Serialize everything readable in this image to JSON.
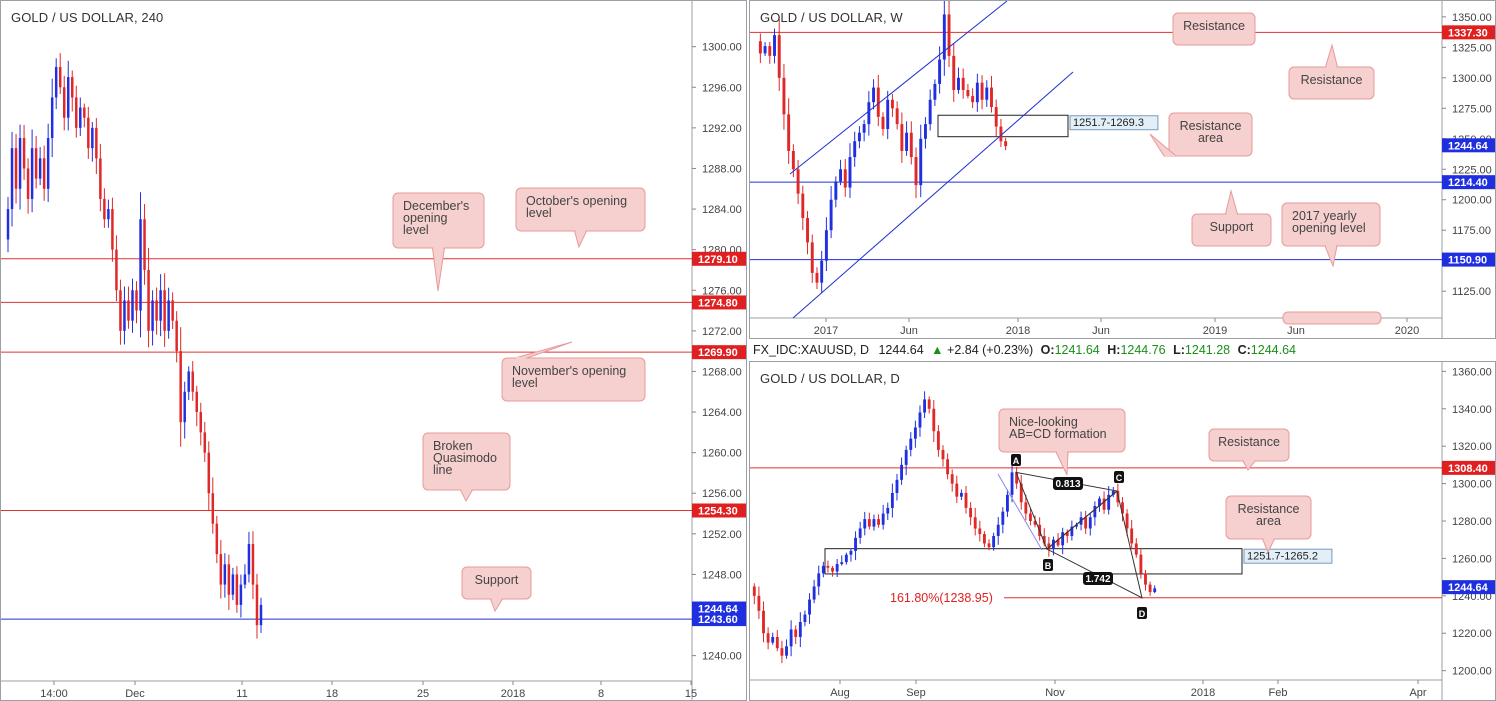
{
  "colors": {
    "up": "#2030e0",
    "down": "#e02828",
    "hline": "#e03030",
    "blueline": "#2030d0",
    "callout_bg": "#f6cfcf",
    "callout_border": "#e89a9a",
    "price_red": "#e02020",
    "price_blue": "#1f2fe0"
  },
  "symbol_bar": {
    "symbol": "FX_IDC:XAUUSD, D",
    "last": "1244.64",
    "change_icon": "triangle-up-icon",
    "change": "+2.84 (+0.23%)",
    "o_label": "O:",
    "o": "1241.64",
    "h_label": "H:",
    "h": "1244.76",
    "l_label": "L:",
    "l": "1241.28",
    "c_label": "C:",
    "c": "1244.64"
  },
  "chart_data": [
    {
      "id": "h4",
      "type": "candlestick",
      "title": "GOLD / US DOLLAR, 240",
      "ylim": [
        1237.5,
        1304.5
      ],
      "y_ticks": [
        "1240.00",
        "1244.00",
        "1248.00",
        "1252.00",
        "1256.00",
        "1260.00",
        "1264.00",
        "1268.00",
        "1272.00",
        "1276.00",
        "1280.00",
        "1284.00",
        "1288.00",
        "1292.00",
        "1296.00",
        "1300.00"
      ],
      "x_ticks": [
        "14:00",
        "Dec",
        "11",
        "18",
        "25",
        "2018",
        "8",
        "15"
      ],
      "levels": [
        {
          "price": 1279.1,
          "label": "1279.10",
          "color": "red"
        },
        {
          "price": 1274.8,
          "label": "1274.80",
          "color": "red"
        },
        {
          "price": 1269.9,
          "label": "1269.90",
          "color": "red"
        },
        {
          "price": 1254.3,
          "label": "1254.30",
          "color": "red"
        },
        {
          "price": 1243.6,
          "label": "1243.60",
          "color": "blue"
        }
      ],
      "last_price": {
        "price": 1244.64,
        "label": "1244.64"
      },
      "callouts": [
        {
          "text": [
            "December's",
            "opening",
            "level"
          ]
        },
        {
          "text": [
            "October's opening",
            "level"
          ]
        },
        {
          "text": [
            "November's opening",
            "level"
          ]
        },
        {
          "text": [
            "Broken",
            "Quasimodo",
            "line"
          ]
        },
        {
          "text": [
            "Support"
          ]
        }
      ],
      "path": [
        1281,
        1284,
        1290,
        1286,
        1291,
        1288,
        1285,
        1290,
        1287,
        1289,
        1286,
        1291,
        1295,
        1298,
        1296,
        1293,
        1297,
        1295,
        1292,
        1294,
        1293,
        1290,
        1292,
        1289,
        1285,
        1283,
        1284,
        1280,
        1276,
        1272,
        1275,
        1273,
        1276,
        1274,
        1283,
        1278,
        1272,
        1275,
        1273,
        1276,
        1272,
        1275,
        1273,
        1270,
        1263,
        1266,
        1268,
        1266,
        1264,
        1262,
        1260,
        1256,
        1253,
        1250,
        1247,
        1249,
        1246,
        1248,
        1245,
        1247,
        1248,
        1251,
        1247,
        1243,
        1245
      ],
      "path_x": [
        0,
        59
      ]
    },
    {
      "id": "weekly",
      "type": "candlestick",
      "title": "GOLD / US DOLLAR, W",
      "ylim": [
        1103,
        1363
      ],
      "y_ticks": [
        "1125.00",
        "1150.00",
        "1175.00",
        "1200.00",
        "1225.00",
        "1250.00",
        "1275.00",
        "1300.00",
        "1325.00",
        "1350.00"
      ],
      "x_ticks": [
        "2017",
        "Jun",
        "2018",
        "Jun",
        "2019",
        "Jun",
        "2020"
      ],
      "levels": [
        {
          "price": 1337.3,
          "label": "1337.30",
          "color": "red"
        },
        {
          "price": 1214.4,
          "label": "1214.40",
          "color": "blue"
        },
        {
          "price": 1150.9,
          "label": "1150.90",
          "color": "blue"
        }
      ],
      "last_price": {
        "price": 1244.64,
        "label": "1244.64"
      },
      "zone": {
        "top": 1269.3,
        "bottom": 1251.7,
        "label": "1251.7-1269.3"
      },
      "callouts": [
        {
          "text": [
            "Resistance"
          ]
        },
        {
          "text": [
            "Resistance"
          ]
        },
        {
          "text": [
            "Resistance",
            "area"
          ]
        },
        {
          "text": [
            "Support"
          ]
        },
        {
          "text": [
            "2017 yearly",
            "opening level"
          ]
        }
      ],
      "path": [
        1330,
        1320,
        1326,
        1318,
        1335,
        1300,
        1270,
        1240,
        1225,
        1205,
        1185,
        1165,
        1140,
        1132,
        1150,
        1175,
        1200,
        1215,
        1225,
        1210,
        1235,
        1248,
        1255,
        1262,
        1280,
        1292,
        1268,
        1258,
        1282,
        1275,
        1262,
        1240,
        1255,
        1235,
        1212,
        1250,
        1262,
        1282,
        1295,
        1315,
        1352,
        1318,
        1290,
        1300,
        1290,
        1285,
        1280,
        1296,
        1282,
        1292,
        1276,
        1260,
        1248,
        1244
      ],
      "path_x": [
        0,
        52
      ]
    },
    {
      "id": "daily",
      "type": "candlestick",
      "title": "GOLD / US DOLLAR, D",
      "ylim": [
        1195,
        1365
      ],
      "y_ticks": [
        "1200.00",
        "1220.00",
        "1240.00",
        "1260.00",
        "1280.00",
        "1300.00",
        "1320.00",
        "1340.00",
        "1360.00"
      ],
      "x_ticks": [
        "Aug",
        "Sep",
        "Nov",
        "2018",
        "Feb",
        "Apr"
      ],
      "levels": [
        {
          "price": 1308.4,
          "label": "1308.40",
          "color": "red"
        },
        {
          "price": 1238.95,
          "label": "161.80%(1238.95)",
          "color": "red"
        }
      ],
      "last_price": {
        "price": 1244.64,
        "label": "1244.64"
      },
      "zone": {
        "top": 1265.2,
        "bottom": 1251.7,
        "label": "1251.7-1265.2"
      },
      "pattern": {
        "points": [
          {
            "name": "A",
            "price": 1306
          },
          {
            "name": "B",
            "price": 1265
          },
          {
            "name": "C",
            "price": 1296
          },
          {
            "name": "D",
            "price": 1238.95
          }
        ],
        "ratios": [
          "0.813",
          "1.742"
        ]
      },
      "callouts": [
        {
          "text": [
            "Nice-looking",
            "AB=CD formation"
          ]
        },
        {
          "text": [
            "Resistance"
          ]
        },
        {
          "text": [
            "Resistance",
            "area"
          ]
        }
      ],
      "path": [
        1245,
        1240,
        1232,
        1220,
        1215,
        1218,
        1212,
        1208,
        1213,
        1222,
        1218,
        1226,
        1230,
        1238,
        1245,
        1252,
        1256,
        1255,
        1253,
        1257,
        1258,
        1262,
        1264,
        1271,
        1276,
        1281,
        1277,
        1281,
        1278,
        1284,
        1287,
        1295,
        1302,
        1310,
        1318,
        1324,
        1330,
        1338,
        1345,
        1340,
        1328,
        1318,
        1313,
        1305,
        1300,
        1293,
        1295,
        1287,
        1282,
        1276,
        1273,
        1268,
        1266,
        1272,
        1278,
        1285,
        1294,
        1306,
        1300,
        1290,
        1284,
        1280,
        1278,
        1272,
        1268,
        1265,
        1270,
        1267,
        1274,
        1272,
        1277,
        1278,
        1282,
        1276,
        1282,
        1288,
        1292,
        1286,
        1294,
        1296,
        1290,
        1284,
        1276,
        1268,
        1262,
        1252,
        1246,
        1242,
        1244
      ],
      "path_x": [
        0,
        89
      ]
    }
  ]
}
